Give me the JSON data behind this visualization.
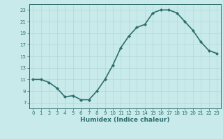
{
  "x": [
    0,
    1,
    2,
    3,
    4,
    5,
    6,
    7,
    8,
    9,
    10,
    11,
    12,
    13,
    14,
    15,
    16,
    17,
    18,
    19,
    20,
    21,
    22,
    23
  ],
  "y": [
    11,
    11,
    10.5,
    9.5,
    8,
    8.2,
    7.5,
    7.5,
    9,
    11,
    13.5,
    16.5,
    18.5,
    20,
    20.5,
    22.5,
    23,
    23,
    22.5,
    21,
    19.5,
    17.5,
    16,
    15.5
  ],
  "xlabel": "Humidex (Indice chaleur)",
  "xlim": [
    -0.5,
    23.5
  ],
  "ylim": [
    6,
    24
  ],
  "yticks": [
    7,
    9,
    11,
    13,
    15,
    17,
    19,
    21,
    23
  ],
  "xticks": [
    0,
    1,
    2,
    3,
    4,
    5,
    6,
    7,
    8,
    9,
    10,
    11,
    12,
    13,
    14,
    15,
    16,
    17,
    18,
    19,
    20,
    21,
    22,
    23
  ],
  "line_color": "#2e6e6e",
  "marker_color": "#2e6e6e",
  "bg_color": "#c8eaea",
  "grid_color": "#b0d8d8",
  "tick_label_color": "#2e6e6e",
  "xlabel_color": "#2e6e6e",
  "marker": "D",
  "markersize": 2,
  "linewidth": 1.2
}
